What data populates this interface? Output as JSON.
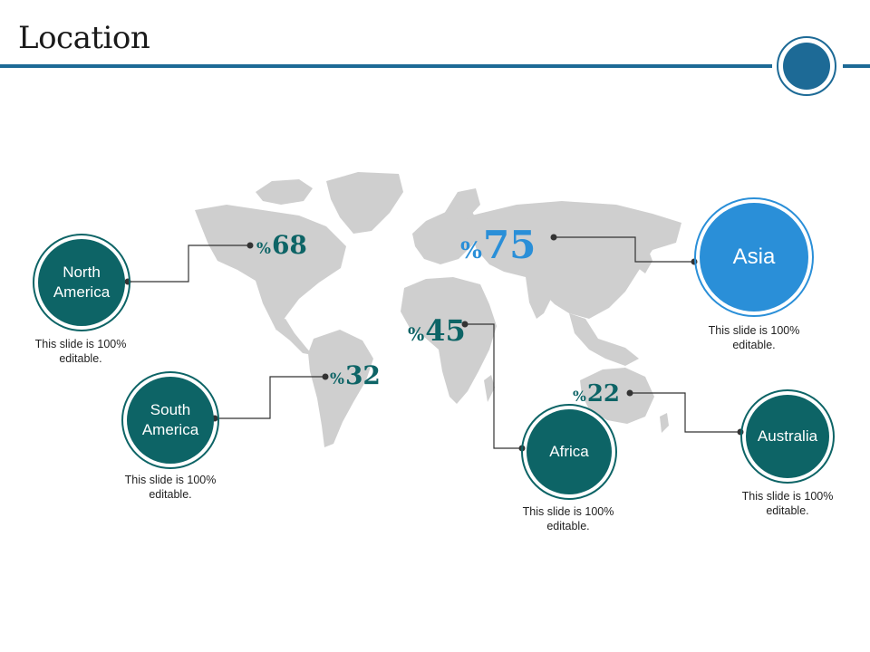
{
  "title": "Location",
  "colors": {
    "accent_blue": "#1d6a96",
    "teal": "#0d6466",
    "asia_blue": "#2a8fd8",
    "map_gray": "#cfcfcf",
    "connector": "#333333"
  },
  "regions": [
    {
      "name": "North America",
      "percent_symbol": "%",
      "percent_value": "68",
      "note": "This slide is 100% editable."
    },
    {
      "name": "South America",
      "percent_symbol": "%",
      "percent_value": "32",
      "note": "This slide is 100% editable."
    },
    {
      "name": "Africa",
      "percent_symbol": "%",
      "percent_value": "45",
      "note": "This slide is 100% editable."
    },
    {
      "name": "Asia",
      "percent_symbol": "%",
      "percent_value": "75",
      "note": "This slide is 100% editable."
    },
    {
      "name": "Australia",
      "percent_symbol": "%",
      "percent_value": "22",
      "note": "This slide is 100% editable."
    }
  ]
}
